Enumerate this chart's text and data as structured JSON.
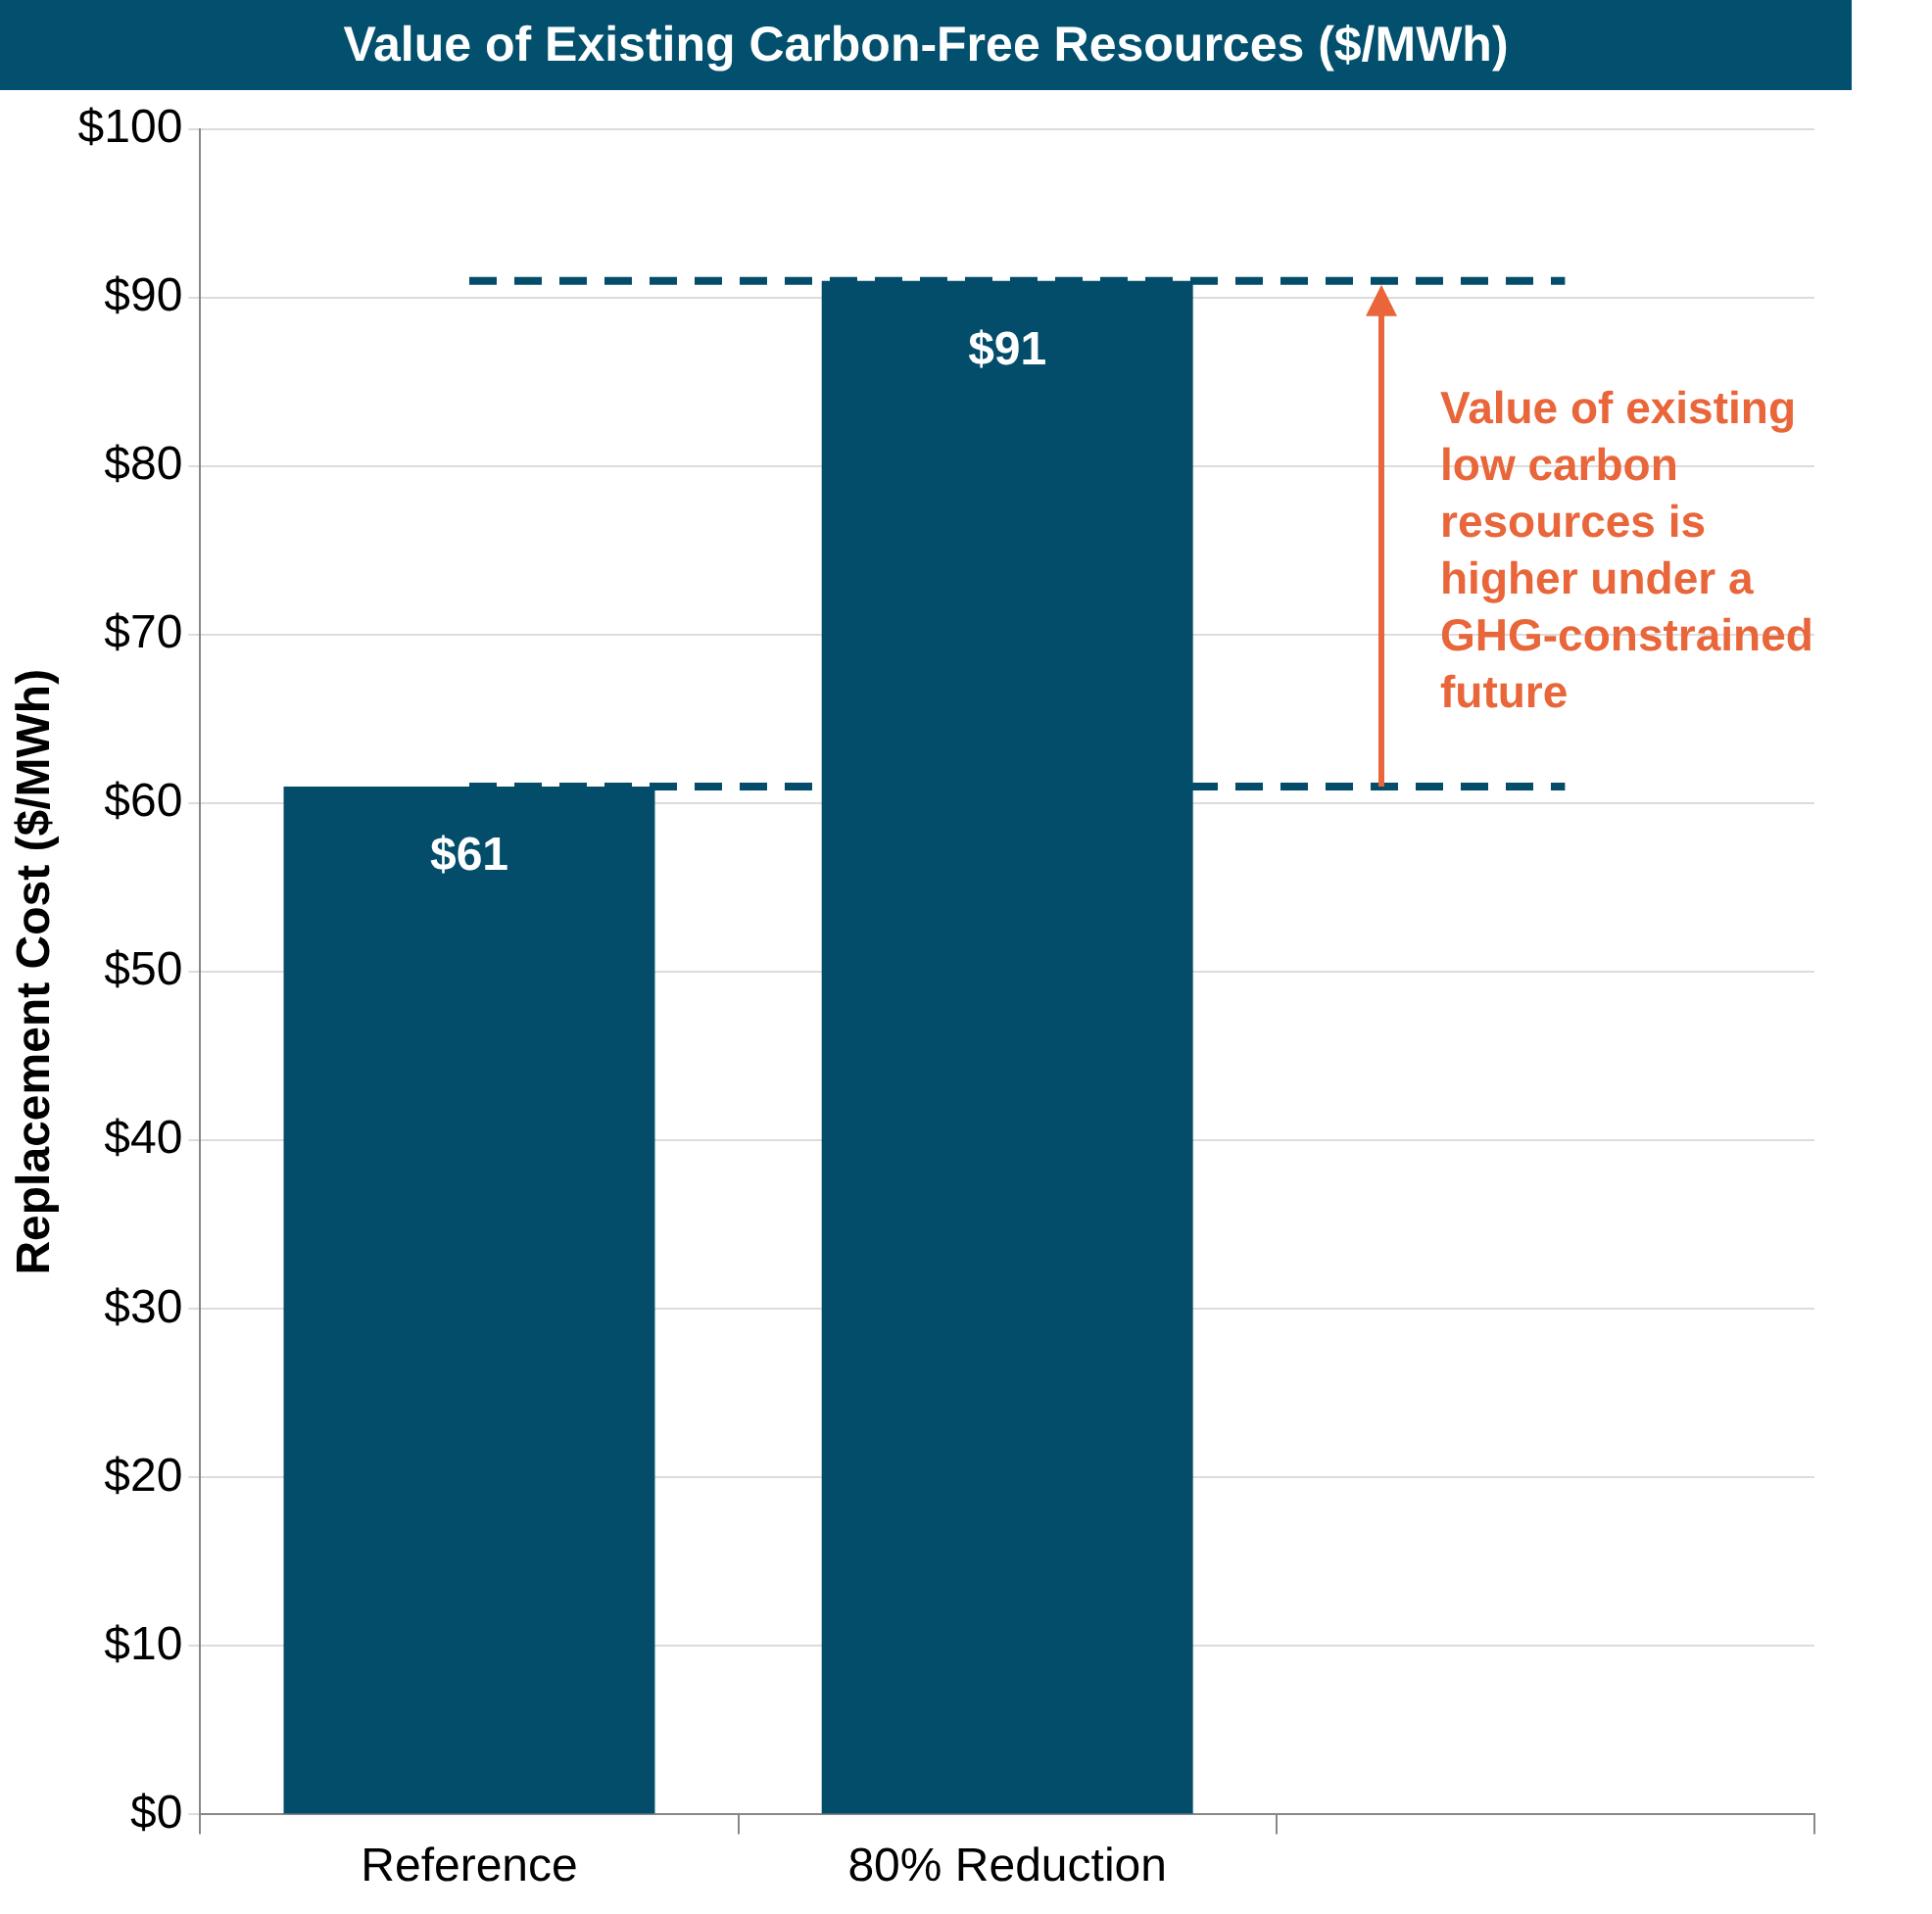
{
  "chart_data": {
    "type": "bar",
    "title": "Value of Existing Carbon-Free Resources ($/MWh)",
    "ylabel": "Replacement Cost ($/MWh)",
    "categories": [
      "Reference",
      "80% Reduction",
      null
    ],
    "values": [
      61,
      91,
      null
    ],
    "value_labels": [
      "$61",
      "$91",
      null
    ],
    "color": "#034d6b",
    "ylim": [
      0,
      100
    ],
    "yticks": [
      {
        "value": 0,
        "label": "$0"
      },
      {
        "value": 10,
        "label": "$10"
      },
      {
        "value": 20,
        "label": "$20"
      },
      {
        "value": 30,
        "label": "$30"
      },
      {
        "value": 40,
        "label": "$40"
      },
      {
        "value": 50,
        "label": "$50"
      },
      {
        "value": 60,
        "label": "$60"
      },
      {
        "value": 70,
        "label": "$70"
      },
      {
        "value": 80,
        "label": "$80"
      },
      {
        "value": 90,
        "label": "$90"
      },
      {
        "value": 100,
        "label": "$100"
      }
    ],
    "grid": "y",
    "legend": false,
    "ref_lines": [
      {
        "axis": "y",
        "value": 61,
        "color": "#034d6b",
        "line_style": "dashed"
      },
      {
        "axis": "y",
        "value": 91,
        "color": "#034d6b",
        "line_style": "dashed"
      }
    ],
    "annotations": [
      "Value of existing low carbon resources is higher under a GHG-constrained future"
    ]
  }
}
